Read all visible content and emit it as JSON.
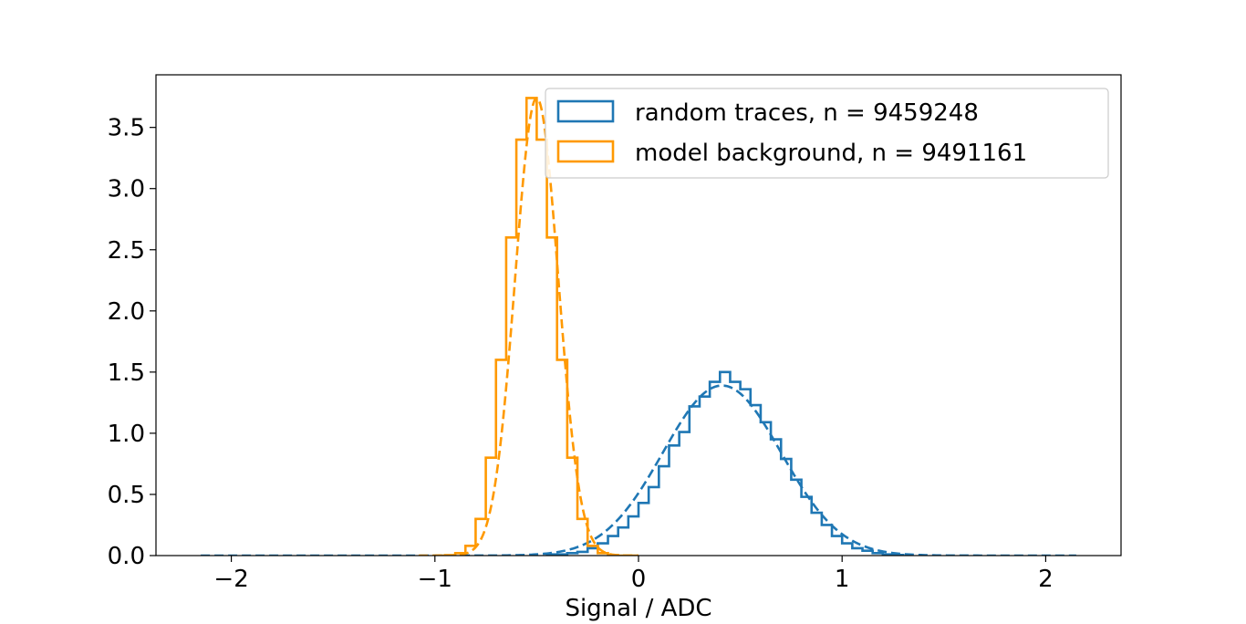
{
  "chart_data": {
    "type": "histogram",
    "title": "",
    "xlabel": "Signal / ADC",
    "ylabel": "",
    "xlim": [
      -2.37,
      2.37
    ],
    "ylim": [
      0,
      3.93
    ],
    "xticks": [
      -2,
      -1,
      0,
      1,
      2
    ],
    "xtick_labels": [
      "−2",
      "−1",
      "0",
      "1",
      "2"
    ],
    "yticks": [
      0.0,
      0.5,
      1.0,
      1.5,
      2.0,
      2.5,
      3.0,
      3.5
    ],
    "ytick_labels": [
      "0.0",
      "0.5",
      "1.0",
      "1.5",
      "2.0",
      "2.5",
      "3.0",
      "3.5"
    ],
    "grid": false,
    "legend_position": "top-right",
    "series": [
      {
        "name": "random traces, n = 9459248",
        "kind": "step-histogram",
        "color": "#1f77b4",
        "fit": {
          "style": "dashed",
          "mean": 0.41,
          "sigma": 0.29,
          "amplitude": 1.39,
          "x_range": [
            -2.15,
            2.15
          ]
        },
        "bins": {
          "edges": [
            -0.45,
            -0.4,
            -0.35,
            -0.3,
            -0.25,
            -0.2,
            -0.15,
            -0.1,
            -0.05,
            0.0,
            0.05,
            0.1,
            0.15,
            0.2,
            0.25,
            0.3,
            0.35,
            0.4,
            0.45,
            0.5,
            0.55,
            0.6,
            0.65,
            0.7,
            0.75,
            0.8,
            0.85,
            0.9,
            0.95,
            1.0,
            1.05,
            1.1,
            1.15,
            1.2,
            1.25,
            1.3
          ],
          "values": [
            0.01,
            0.01,
            0.02,
            0.03,
            0.06,
            0.1,
            0.16,
            0.23,
            0.32,
            0.43,
            0.56,
            0.73,
            0.9,
            1.01,
            1.22,
            1.3,
            1.42,
            1.5,
            1.42,
            1.36,
            1.23,
            1.09,
            0.95,
            0.79,
            0.62,
            0.48,
            0.35,
            0.25,
            0.16,
            0.1,
            0.06,
            0.04,
            0.02,
            0.01,
            0.005
          ]
        }
      },
      {
        "name": "model background, n = 9491161",
        "kind": "step-histogram",
        "color": "#ff9900",
        "fit": {
          "style": "dashed",
          "mean": -0.5,
          "sigma": 0.106,
          "amplitude": 3.74,
          "x_range": [
            -1.08,
            0.0
          ]
        },
        "bins": {
          "edges": [
            -1.0,
            -0.95,
            -0.9,
            -0.85,
            -0.8,
            -0.75,
            -0.7,
            -0.65,
            -0.6,
            -0.55,
            -0.5,
            -0.45,
            -0.4,
            -0.35,
            -0.3,
            -0.25,
            -0.2,
            -0.15,
            -0.1,
            -0.05,
            0.0
          ],
          "values": [
            0.0,
            0.003,
            0.02,
            0.08,
            0.3,
            0.8,
            1.6,
            2.6,
            3.4,
            3.74,
            3.4,
            2.6,
            1.6,
            0.8,
            0.3,
            0.08,
            0.02,
            0.003,
            0.0,
            0.0
          ]
        }
      }
    ]
  }
}
